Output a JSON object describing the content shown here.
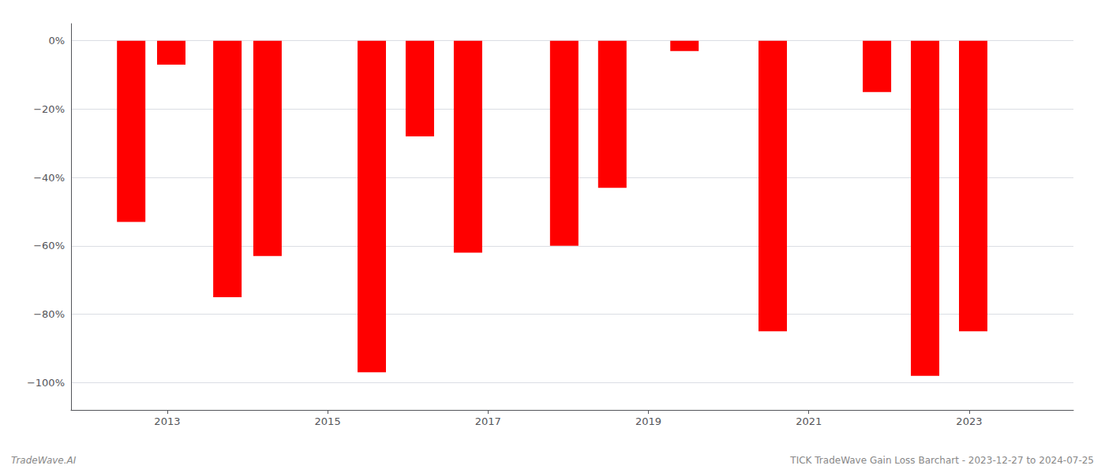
{
  "chart_data": {
    "type": "bar",
    "x": [
      2012.55,
      2013.05,
      2013.75,
      2014.25,
      2015.55,
      2016.15,
      2016.75,
      2017.95,
      2018.55,
      2019.45,
      2020.55,
      2021.85,
      2022.45,
      2023.05
    ],
    "values": [
      -53,
      -7,
      -75,
      -63,
      -97,
      -28,
      -62,
      -60,
      -43,
      -3,
      -85,
      -15,
      -98,
      -85
    ],
    "color": "#ff0000",
    "xlim": [
      2011.8,
      2024.3
    ],
    "xticks": [
      2013,
      2015,
      2017,
      2019,
      2021,
      2023
    ],
    "ylim": [
      -108,
      5
    ],
    "yticks": [
      {
        "value": 0,
        "label": "0%"
      },
      {
        "value": -20,
        "label": "−20%"
      },
      {
        "value": -40,
        "label": "−40%"
      },
      {
        "value": -60,
        "label": "−60%"
      },
      {
        "value": -80,
        "label": "−80%"
      },
      {
        "value": -100,
        "label": "−100%"
      }
    ],
    "grid": true,
    "annotations": [
      "TradeWave.AI",
      "TICK TradeWave Gain Loss Barchart - 2023-12-27 to 2024-07-25"
    ]
  }
}
